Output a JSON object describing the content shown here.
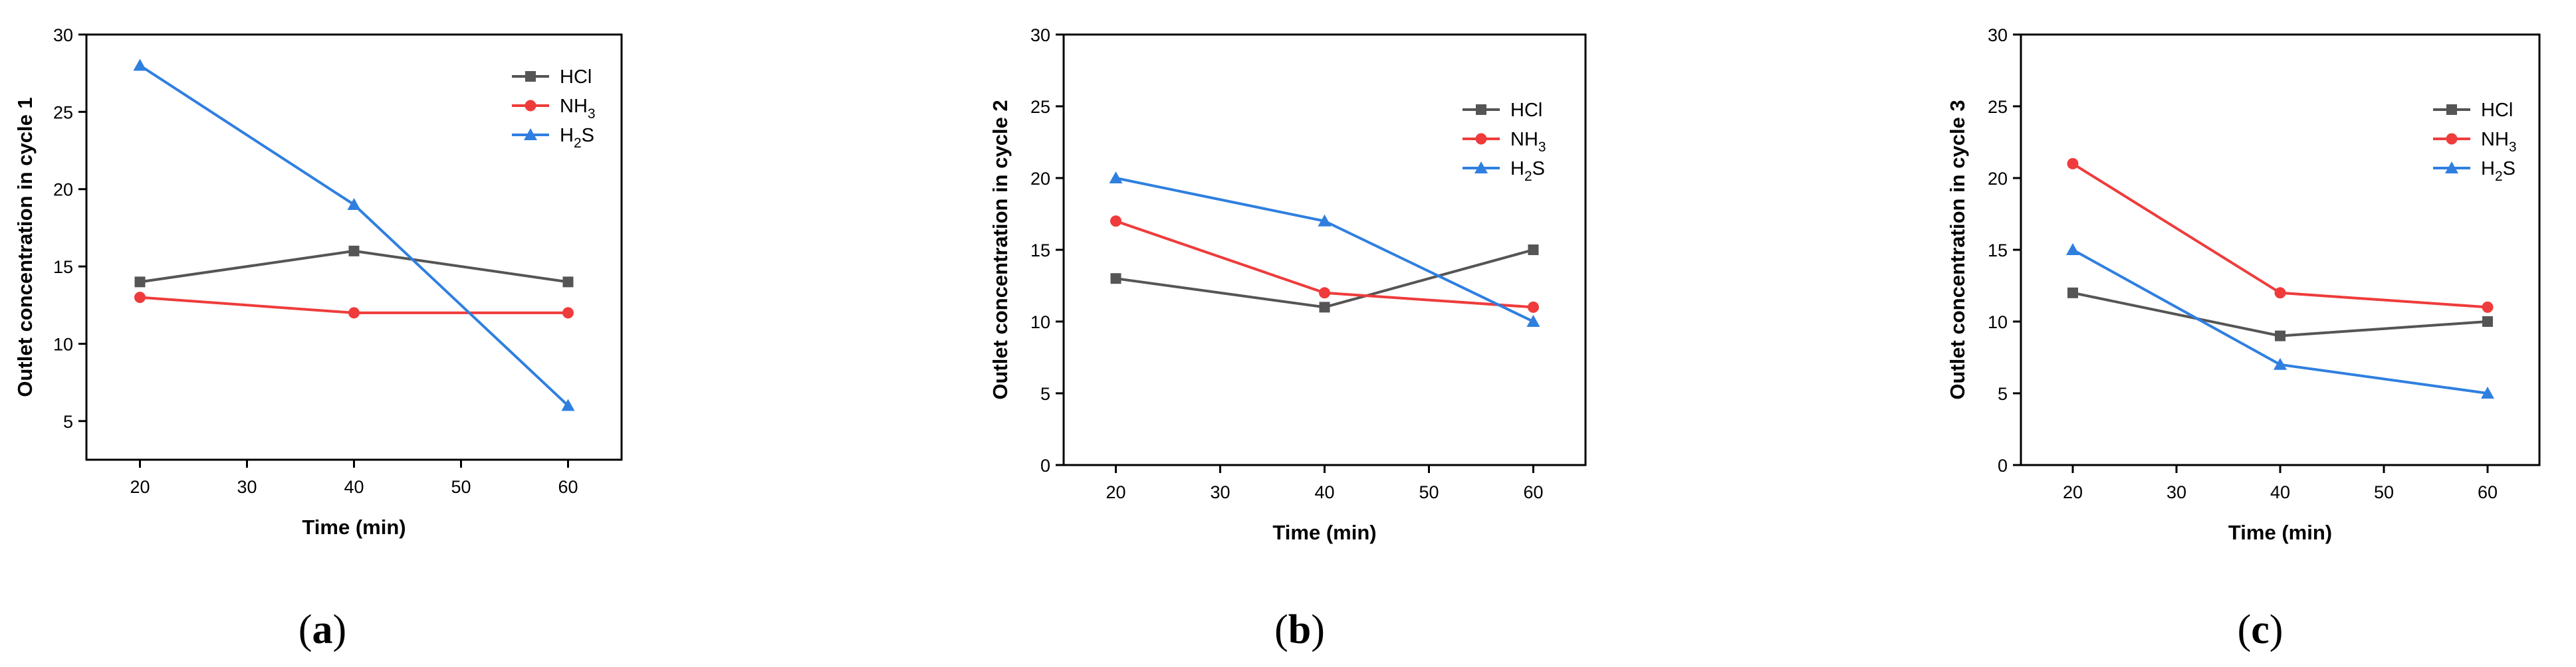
{
  "chart_data": [
    {
      "type": "line",
      "panel_label": "(a)",
      "panel_letter": "a",
      "ylabel": "Outlet concentration in cycle 1",
      "xlabel": "Time (min)",
      "x": [
        20,
        40,
        60
      ],
      "xlim": [
        15,
        65
      ],
      "ylim": [
        2.5,
        30
      ],
      "xticks": [
        20,
        30,
        40,
        50,
        60
      ],
      "yticks": [
        5,
        10,
        15,
        20,
        25,
        30
      ],
      "legend_position": "top-right",
      "series": [
        {
          "name": "HCl",
          "legend": {
            "main": "HCl",
            "sub": "",
            "tail": ""
          },
          "color": "#555555",
          "marker": "square",
          "values": [
            14,
            16,
            14
          ]
        },
        {
          "name": "NH3",
          "legend": {
            "main": "NH",
            "sub": "3",
            "tail": ""
          },
          "color": "#ef3b3b",
          "marker": "circle",
          "values": [
            13,
            12,
            12
          ]
        },
        {
          "name": "H2S",
          "legend": {
            "main": "H",
            "sub": "2",
            "tail": "S"
          },
          "color": "#2f7fe0",
          "marker": "triangle",
          "values": [
            28,
            19,
            6
          ]
        }
      ]
    },
    {
      "type": "line",
      "panel_label": "(b)",
      "panel_letter": "b",
      "ylabel": "Outlet concentration in cycle 2",
      "xlabel": "Time (min)",
      "x": [
        20,
        40,
        60
      ],
      "xlim": [
        15,
        65
      ],
      "ylim": [
        0,
        30
      ],
      "xticks": [
        20,
        30,
        40,
        50,
        60
      ],
      "yticks": [
        0,
        5,
        10,
        15,
        20,
        25,
        30
      ],
      "legend_position": "right",
      "series": [
        {
          "name": "HCl",
          "legend": {
            "main": "HCl",
            "sub": "",
            "tail": ""
          },
          "color": "#555555",
          "marker": "square",
          "values": [
            13,
            11,
            15
          ]
        },
        {
          "name": "NH3",
          "legend": {
            "main": "NH",
            "sub": "3",
            "tail": ""
          },
          "color": "#ef3b3b",
          "marker": "circle",
          "values": [
            17,
            12,
            11
          ]
        },
        {
          "name": "H2S",
          "legend": {
            "main": "H",
            "sub": "2",
            "tail": "S"
          },
          "color": "#2f7fe0",
          "marker": "triangle",
          "values": [
            20,
            17,
            10
          ]
        }
      ]
    },
    {
      "type": "line",
      "panel_label": "(c)",
      "panel_letter": "c",
      "ylabel": "Outlet concentration in cycle 3",
      "xlabel": "Time (min)",
      "x": [
        20,
        40,
        60
      ],
      "xlim": [
        15,
        65
      ],
      "ylim": [
        0,
        30
      ],
      "xticks": [
        20,
        30,
        40,
        50,
        60
      ],
      "yticks": [
        0,
        5,
        10,
        15,
        20,
        25,
        30
      ],
      "legend_position": "right",
      "series": [
        {
          "name": "HCl",
          "legend": {
            "main": "HCl",
            "sub": "",
            "tail": ""
          },
          "color": "#555555",
          "marker": "square",
          "values": [
            12,
            9,
            10
          ]
        },
        {
          "name": "NH3",
          "legend": {
            "main": "NH",
            "sub": "3",
            "tail": ""
          },
          "color": "#ef3b3b",
          "marker": "circle",
          "values": [
            21,
            12,
            11
          ]
        },
        {
          "name": "H2S",
          "legend": {
            "main": "H",
            "sub": "2",
            "tail": "S"
          },
          "color": "#2f7fe0",
          "marker": "triangle",
          "values": [
            15,
            7,
            5
          ]
        }
      ]
    }
  ]
}
